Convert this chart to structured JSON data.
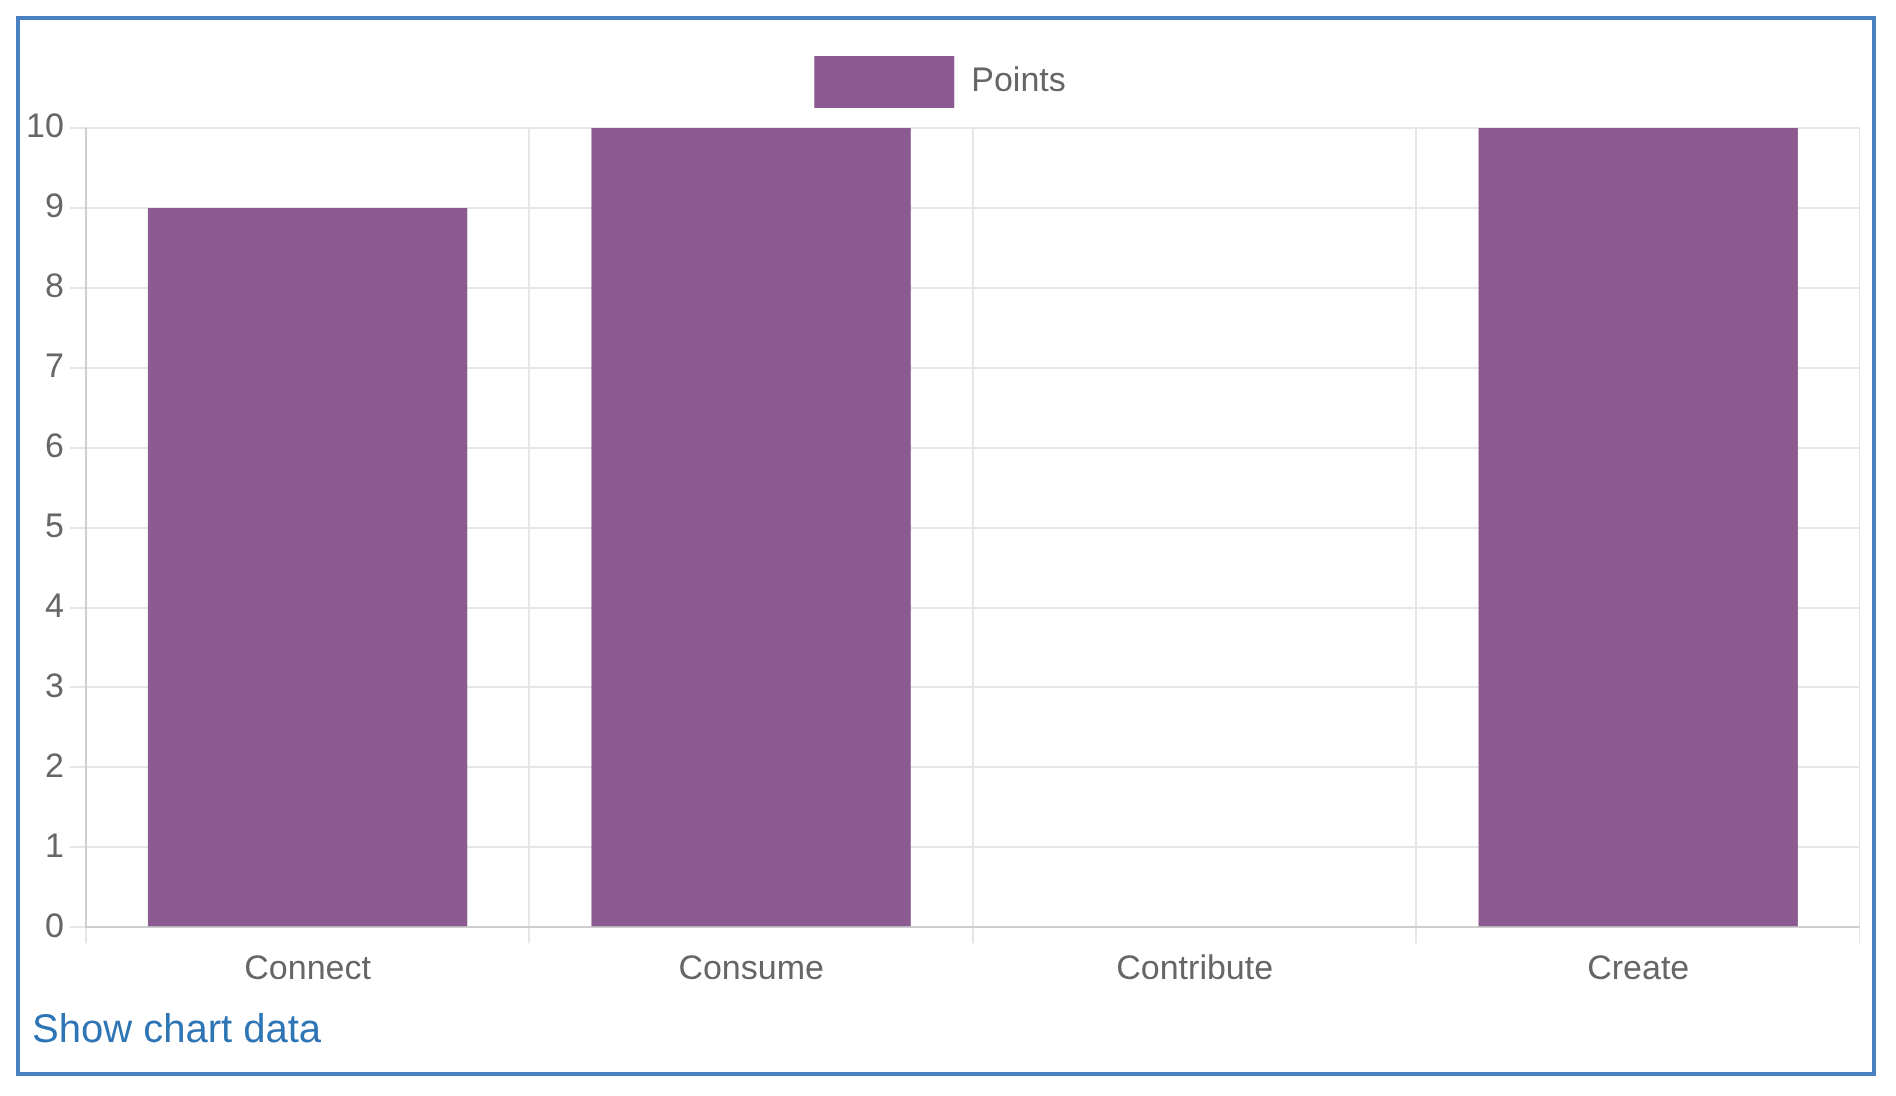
{
  "chart_data": {
    "type": "bar",
    "categories": [
      "Connect",
      "Consume",
      "Contribute",
      "Create"
    ],
    "series": [
      {
        "name": "Points",
        "color": "#8b5a91",
        "values": [
          9,
          10,
          0,
          10
        ]
      }
    ],
    "ylim": [
      0,
      10
    ],
    "yticks": [
      0,
      1,
      2,
      3,
      4,
      5,
      6,
      7,
      8,
      9,
      10
    ],
    "grid": true,
    "legend": "top",
    "annotations": [
      "Show chart data"
    ]
  }
}
